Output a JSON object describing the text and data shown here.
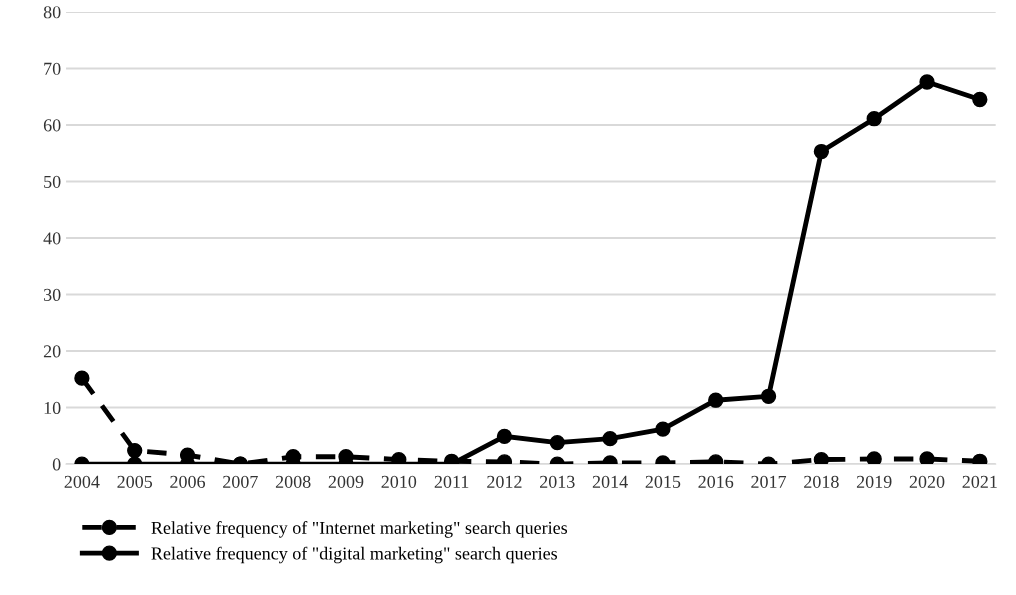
{
  "chart_data": {
    "type": "line",
    "categories": [
      "2004",
      "2005",
      "2006",
      "2007",
      "2008",
      "2009",
      "2010",
      "2011",
      "2012",
      "2013",
      "2014",
      "2015",
      "2016",
      "2017",
      "2018",
      "2019",
      "2020",
      "2021"
    ],
    "series": [
      {
        "name": "Relative frequency of \"Internet marketing\" search queries",
        "color": "#000000",
        "line_style": "dashed",
        "values": [
          15.2,
          2.4,
          1.6,
          0,
          1.3,
          1.3,
          0.8,
          0.5,
          0.4,
          0,
          0.2,
          0.2,
          0.4,
          0,
          0.8,
          0.9,
          0.9,
          0.5
        ]
      },
      {
        "name": "Relative frequency of \"digital marketing\" search queries",
        "color": "#000000",
        "line_style": "solid",
        "values": [
          0,
          0,
          0,
          0,
          0,
          0,
          0,
          0,
          4.9,
          3.8,
          4.5,
          6.2,
          11.3,
          12,
          55.3,
          61.1,
          67.6,
          64.5
        ]
      }
    ],
    "ylim": [
      0,
      80
    ],
    "yticks": [
      0,
      10,
      20,
      30,
      40,
      50,
      60,
      70,
      80
    ],
    "grid": "y",
    "legend": "bottom",
    "marker": "circle"
  }
}
